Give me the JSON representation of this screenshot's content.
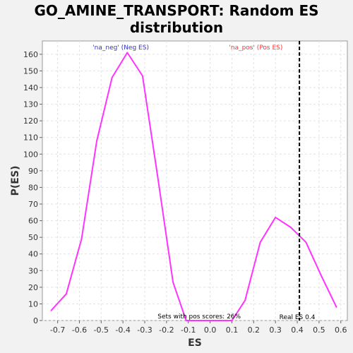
{
  "chart_data": {
    "type": "line",
    "title_line1": "GO_AMINE_TRANSPORT: Random ES",
    "title_line2": "distribution",
    "xlabel": "ES",
    "ylabel": "P(ES)",
    "xlim": [
      -0.77,
      0.63
    ],
    "ylim": [
      0,
      168
    ],
    "x_ticks": [
      -0.7,
      -0.6,
      -0.5,
      -0.4,
      -0.3,
      -0.2,
      -0.1,
      0.0,
      0.1,
      0.2,
      0.3,
      0.4,
      0.5,
      0.6
    ],
    "x_tick_labels": [
      "-0.7",
      "-0.6",
      "-0.5",
      "-0.4",
      "-0.3",
      "-0.2",
      "-0.1",
      "0.0",
      "0.1",
      "0.2",
      "0.3",
      "0.4",
      "0.5",
      "0.6"
    ],
    "y_ticks": [
      0,
      10,
      20,
      30,
      40,
      50,
      60,
      70,
      80,
      90,
      100,
      110,
      120,
      130,
      140,
      150,
      160
    ],
    "y_tick_labels": [
      "0",
      "10",
      "20",
      "30",
      "40",
      "50",
      "60",
      "70",
      "80",
      "90",
      "100",
      "110",
      "120",
      "130",
      "140",
      "150",
      "160"
    ],
    "grid": true,
    "series": [
      {
        "color": "#ff33ff",
        "x": [
          -0.73,
          -0.66,
          -0.59,
          -0.52,
          -0.45,
          -0.38,
          -0.31,
          -0.24,
          -0.17,
          -0.11,
          0.1,
          0.16,
          0.23,
          0.3,
          0.37,
          0.44,
          0.51,
          0.58
        ],
        "y": [
          6,
          16,
          49,
          108,
          146,
          161,
          147,
          86,
          23,
          0,
          0,
          12,
          47,
          62,
          56,
          47,
          27,
          8
        ]
      }
    ],
    "real_es": 0.41,
    "annotations": {
      "neg_label": "'na_neg' (Neg ES)",
      "neg_color": "#3333cc",
      "pos_label": "'na_pos' (Pos ES)",
      "pos_color": "#ff3333",
      "sets_with_pos": "Sets with pos scores: 26%",
      "real_es_label": "Real ES 0.4"
    }
  }
}
